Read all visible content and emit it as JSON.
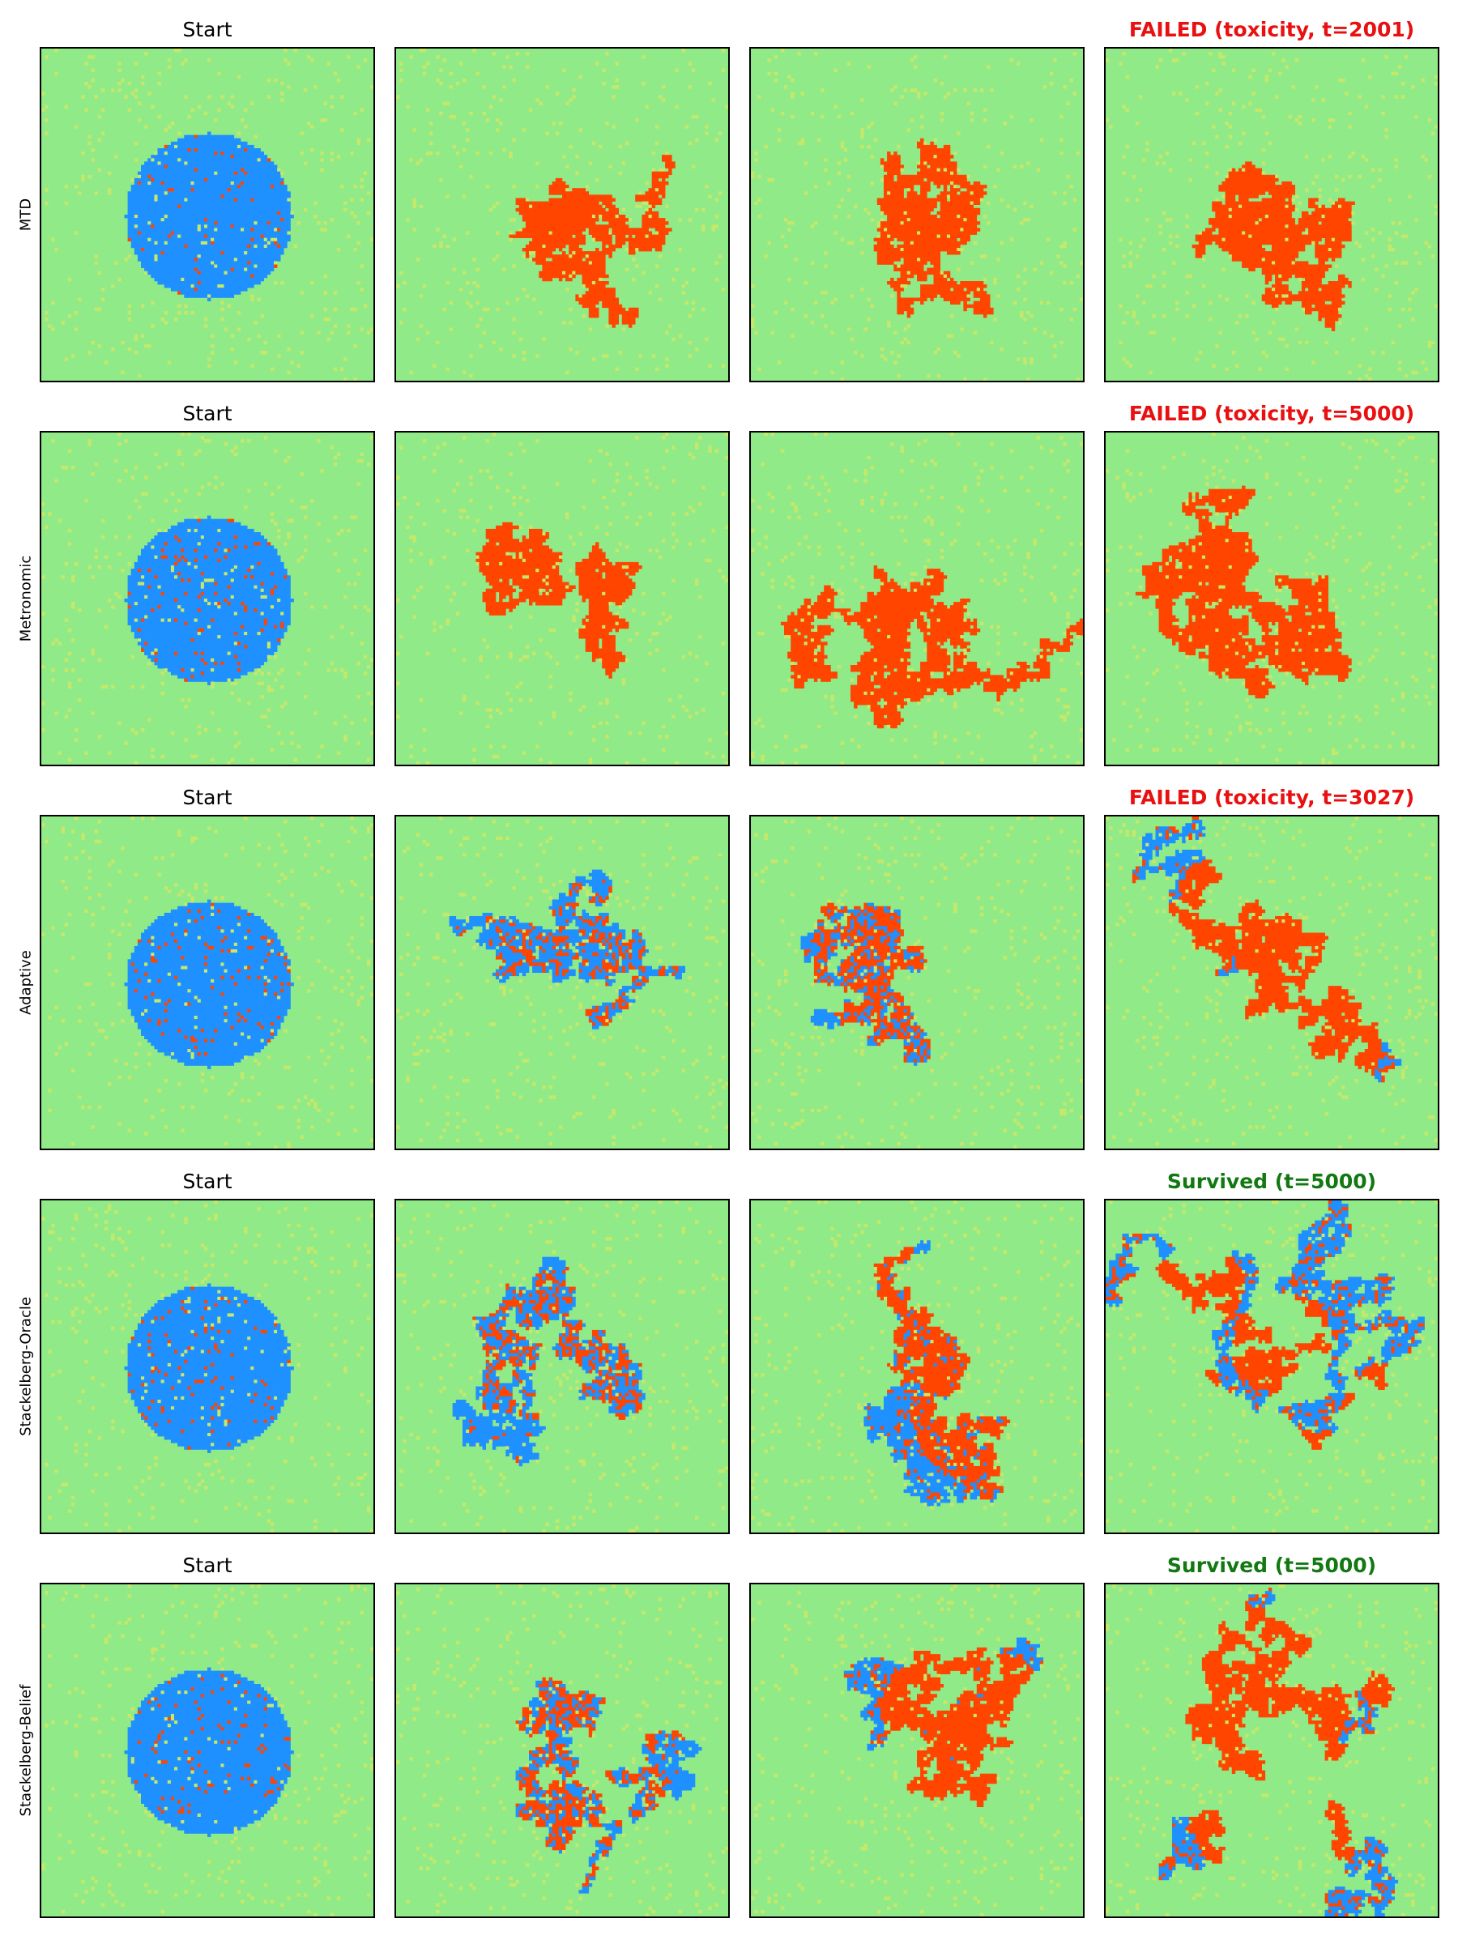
{
  "chart_data": {
    "type": "heatmap",
    "colors": {
      "background": "#90ea88",
      "speckle": "#c6e86a",
      "sensitive": "#1e90ff",
      "resistant": "#ff4500",
      "failed_title": "#e81010",
      "survived_title": "#127812"
    },
    "rows": [
      {
        "label": "MTD",
        "start_title": "Start",
        "end_title": "FAILED (toxicity, t=2001)",
        "outcome": "failed",
        "panels": [
          {
            "type": "circle",
            "resistant_fraction": 0.04
          },
          {
            "type": "blob",
            "size": 0.58,
            "resistant_fraction": 1.0,
            "spread": 0.55
          },
          {
            "type": "blob",
            "size": 0.72,
            "resistant_fraction": 1.0,
            "spread": 0.7
          },
          {
            "type": "blob",
            "size": 0.8,
            "resistant_fraction": 1.0,
            "spread": 0.8
          }
        ]
      },
      {
        "label": "Metronomic",
        "start_title": "Start",
        "end_title": "FAILED (toxicity, t=5000)",
        "outcome": "failed",
        "panels": [
          {
            "type": "circle",
            "resistant_fraction": 0.05
          },
          {
            "type": "blob",
            "size": 0.62,
            "resistant_fraction": 1.0,
            "spread": 0.6
          },
          {
            "type": "blob",
            "size": 0.95,
            "resistant_fraction": 1.0,
            "spread": 0.95
          },
          {
            "type": "blob",
            "size": 1.25,
            "resistant_fraction": 1.0,
            "spread": 1.3
          }
        ]
      },
      {
        "label": "Adaptive",
        "start_title": "Start",
        "end_title": "FAILED (toxicity, t=3027)",
        "outcome": "failed",
        "panels": [
          {
            "type": "circle",
            "resistant_fraction": 0.05
          },
          {
            "type": "blob",
            "size": 0.6,
            "resistant_fraction": 0.15,
            "spread": 0.6
          },
          {
            "type": "blob",
            "size": 0.7,
            "resistant_fraction": 0.3,
            "spread": 0.75
          },
          {
            "type": "blob",
            "size": 0.75,
            "resistant_fraction": 0.55,
            "spread": 1.0
          }
        ]
      },
      {
        "label": "Stackelberg-Oracle",
        "start_title": "Start",
        "end_title": "Survived (t=5000)",
        "outcome": "survived",
        "panels": [
          {
            "type": "circle",
            "resistant_fraction": 0.05
          },
          {
            "type": "blob",
            "size": 0.78,
            "resistant_fraction": 0.2,
            "spread": 0.75
          },
          {
            "type": "blob",
            "size": 0.9,
            "resistant_fraction": 0.4,
            "spread": 1.0
          },
          {
            "type": "blob",
            "size": 0.95,
            "resistant_fraction": 0.6,
            "spread": 1.2
          }
        ]
      },
      {
        "label": "Stackelberg-Belief",
        "start_title": "Start",
        "end_title": "Survived (t=5000)",
        "outcome": "survived",
        "panels": [
          {
            "type": "circle",
            "resistant_fraction": 0.05
          },
          {
            "type": "blob",
            "size": 0.68,
            "resistant_fraction": 0.25,
            "spread": 0.75
          },
          {
            "type": "blob",
            "size": 0.85,
            "resistant_fraction": 0.45,
            "spread": 0.95
          },
          {
            "type": "blob",
            "size": 0.95,
            "resistant_fraction": 0.75,
            "spread": 1.2
          }
        ]
      }
    ]
  }
}
